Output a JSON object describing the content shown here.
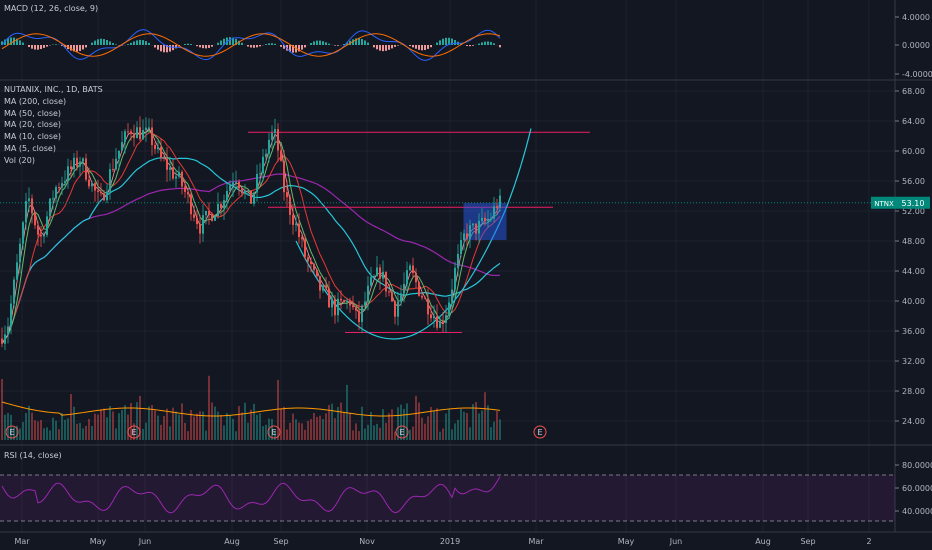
{
  "macd_panel": {
    "legend": "MACD (12, 26, close, 9)",
    "ticks": [
      "4.0000",
      "0.0000",
      "-4.0000"
    ]
  },
  "price_panel": {
    "legend": [
      "NUTANIX, INC., 1D, BATS",
      "MA (200, close)",
      "MA (50, close)",
      "MA (20, close)",
      "MA (10, close)",
      "MA (5, close)",
      "Vol (20)"
    ],
    "ticks": [
      "68.00",
      "64.00",
      "60.00",
      "56.00",
      "52.00",
      "48.00",
      "44.00",
      "40.00",
      "36.00",
      "32.00",
      "28.00",
      "24.00"
    ],
    "price_label": {
      "ticker": "NTNX",
      "value": "53.10"
    },
    "earnings_marker": "E"
  },
  "rsi_panel": {
    "legend": "RSI (14, close)",
    "ticks": [
      "80.0000",
      "60.0000",
      "40.0000"
    ]
  },
  "time_axis": [
    "Mar",
    "May",
    "Jun",
    "Aug",
    "Sep",
    "Nov",
    "2019",
    "Mar",
    "May",
    "Jun",
    "Aug",
    "Sep",
    "2"
  ],
  "colors": {
    "background": "#131722",
    "up": "#26a69a",
    "down": "#ef5350",
    "ma200": "#9c27b0",
    "ma50": "#26c6da",
    "ma20": "#e53935",
    "ma10": "#66bb6a",
    "ma5": "#ef9a9a",
    "vol_ma": "#ff9800",
    "horizontal_line": "#e91e63",
    "price_label": "#00897b",
    "rsi_line": "#9c27b0"
  }
}
